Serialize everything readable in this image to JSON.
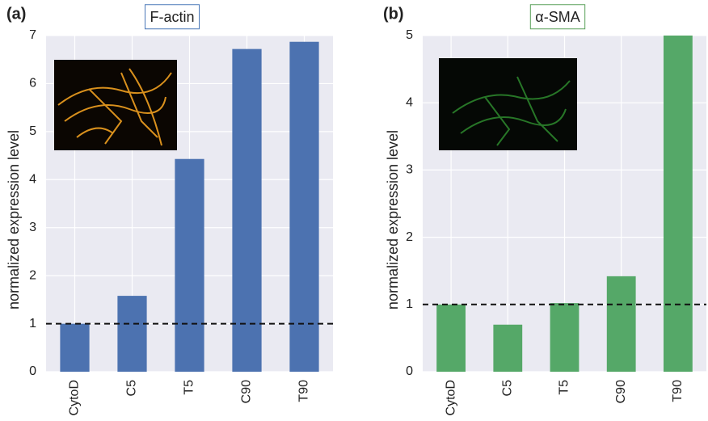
{
  "chart_data": [
    {
      "type": "bar",
      "panel_label": "(a)",
      "title": "F-actin",
      "title_border_color": "#4a78b8",
      "y_label": "normalized expression level",
      "categories": [
        "CytoD",
        "C5",
        "T5",
        "C90",
        "T90"
      ],
      "values": [
        1.0,
        1.58,
        4.43,
        6.72,
        6.87
      ],
      "color": "#4c72b0",
      "ylim": [
        0,
        7
      ],
      "yticks": [
        0,
        1,
        2,
        3,
        4,
        5,
        6,
        7
      ],
      "grid": true,
      "reference_line": 1
    },
    {
      "type": "bar",
      "panel_label": "(b)",
      "title": "α-SMA",
      "title_border_color": "#5aa05a",
      "y_label": "normalized expression level",
      "categories": [
        "CytoD",
        "C5",
        "T5",
        "C90",
        "T90"
      ],
      "values": [
        1.0,
        0.7,
        1.02,
        1.42,
        5.0
      ],
      "color": "#55a868",
      "ylim": [
        0,
        5
      ],
      "yticks": [
        0,
        1,
        2,
        3,
        4,
        5
      ],
      "grid": true,
      "reference_line": 1
    }
  ]
}
